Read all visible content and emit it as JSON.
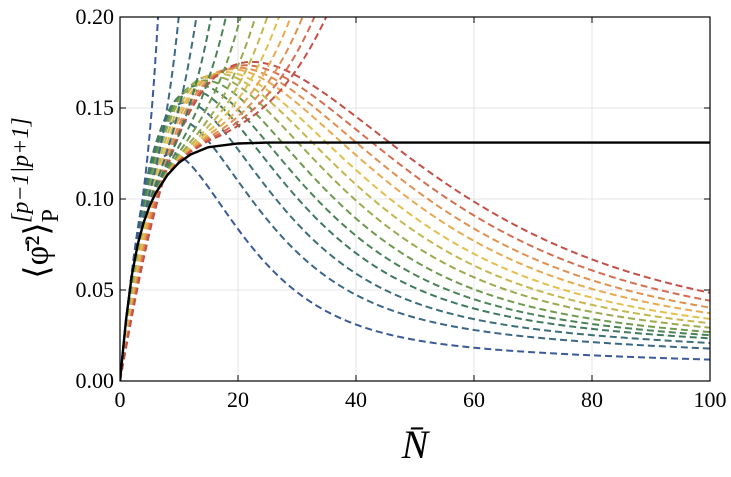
{
  "chart_data": {
    "type": "line",
    "title": "",
    "xlabel": "N̄",
    "ylabel": {
      "main": "⟨φ̄²⟩",
      "sub": "P",
      "sup": "[p−1|p+1]"
    },
    "xlim": [
      0,
      100
    ],
    "ylim": [
      0,
      0.2
    ],
    "x_ticks": [
      "0",
      "20",
      "40",
      "60",
      "80",
      "100"
    ],
    "y_ticks": [
      "0.00",
      "0.05",
      "0.10",
      "0.15",
      "0.20"
    ],
    "grid": true,
    "legend": "none",
    "reference_curve": {
      "style": "solid",
      "color": "#000000",
      "x": [
        0,
        1,
        2,
        3,
        4,
        5,
        6,
        8,
        10,
        12,
        15,
        20,
        25,
        30,
        40,
        60,
        80,
        100
      ],
      "y": [
        0,
        0.033,
        0.058,
        0.075,
        0.087,
        0.096,
        0.103,
        0.113,
        0.12,
        0.1245,
        0.1285,
        0.1305,
        0.131,
        0.131,
        0.131,
        0.131,
        0.131,
        0.131
      ]
    },
    "lower_curves": {
      "style": "dashed",
      "colors": [
        "#3a5a9a",
        "#3a6886",
        "#3c6f7a",
        "#3e7a5e",
        "#4a8456",
        "#6f9a4e",
        "#9aaa4e",
        "#c6b64e",
        "#e3c04e",
        "#e8aa50",
        "#e09050",
        "#d46e4e",
        "#c45048"
      ],
      "series": [
        {
          "peak_x": 8,
          "peak_y": 0.098,
          "y100": 0.0145
        },
        {
          "peak_x": 9,
          "peak_y": 0.106,
          "y100": 0.0225
        },
        {
          "peak_x": 10,
          "peak_y": 0.113,
          "y100": 0.027
        },
        {
          "peak_x": 11,
          "peak_y": 0.118,
          "y100": 0.031
        },
        {
          "peak_x": 12,
          "peak_y": 0.121,
          "y100": 0.034
        },
        {
          "peak_x": 13,
          "peak_y": 0.124,
          "y100": 0.037
        },
        {
          "peak_x": 14,
          "peak_y": 0.126,
          "y100": 0.041
        },
        {
          "peak_x": 15,
          "peak_y": 0.127,
          "y100": 0.045
        },
        {
          "peak_x": 16,
          "peak_y": 0.128,
          "y100": 0.049
        },
        {
          "peak_x": 17,
          "peak_y": 0.129,
          "y100": 0.054
        },
        {
          "peak_x": 18,
          "peak_y": 0.1295,
          "y100": 0.059
        },
        {
          "peak_x": 19,
          "peak_y": 0.13,
          "y100": 0.065
        },
        {
          "peak_x": 20,
          "peak_y": 0.1305,
          "y100": 0.072
        }
      ]
    },
    "upper_curves": {
      "style": "dashed",
      "colors": [
        "#3a5a9a",
        "#3a6886",
        "#3c6f7a",
        "#3e7a5e",
        "#4a8456",
        "#6f9a4e",
        "#9aaa4e",
        "#c6b64e",
        "#e3c04e",
        "#e8aa50",
        "#e09050",
        "#d46e4e",
        "#c45048"
      ],
      "x_at_top": [
        6.5,
        10,
        13,
        15.5,
        18,
        20.5,
        23,
        25,
        27,
        29,
        31,
        33,
        35
      ]
    }
  }
}
